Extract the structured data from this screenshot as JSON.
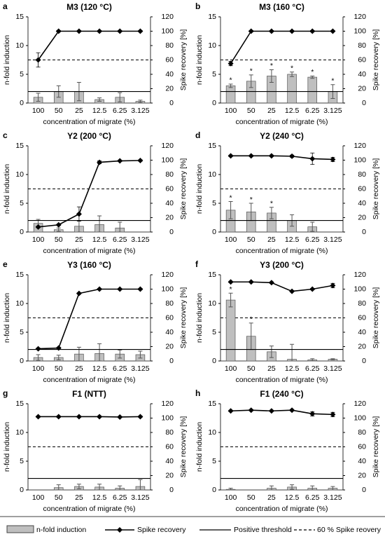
{
  "legend": [
    "n-fold induction",
    "Spike recovery",
    "Positive threshold",
    "60 % Spike reovery"
  ],
  "chart_data": [
    {
      "type": "bar_line",
      "panel": "a",
      "title": "M3 (120 °C)",
      "xlabel": "concentration of migrate (%)",
      "ylabel": "n-fold induction",
      "y2label": "Spike recovery [%]",
      "categories": [
        "100",
        "50",
        "25",
        "12.5",
        "6.25",
        "3.125"
      ],
      "ylim": [
        0,
        15
      ],
      "yticks": [
        0,
        5,
        10,
        15
      ],
      "y2lim": [
        0,
        120
      ],
      "y2ticks": [
        0,
        20,
        40,
        60,
        80,
        100,
        120
      ],
      "bars": {
        "color": "#bfbfbf",
        "values": [
          1.0,
          2.0,
          2.0,
          0.6,
          1.0,
          0.3
        ],
        "errors": [
          0.7,
          1.0,
          1.6,
          0.3,
          0.8,
          0.2
        ],
        "annotations": [
          null,
          null,
          null,
          null,
          null,
          null
        ]
      },
      "line": {
        "color": "#000000",
        "axis": "y2",
        "values": [
          60,
          100,
          100,
          100,
          100,
          100
        ],
        "errors": [
          10,
          1,
          1,
          1,
          1,
          1
        ]
      },
      "threshold": 2,
      "reference": 60
    },
    {
      "type": "bar_line",
      "panel": "b",
      "title": "M3 (160 °C)",
      "xlabel": "concentration of migrate (%)",
      "ylabel": "n-fold induction",
      "y2label": "Spike recovery [%]",
      "categories": [
        "100",
        "50",
        "25",
        "12.5",
        "6.25",
        "3.125"
      ],
      "ylim": [
        0,
        15
      ],
      "yticks": [
        0,
        5,
        10,
        15
      ],
      "y2lim": [
        0,
        120
      ],
      "y2ticks": [
        0,
        20,
        40,
        60,
        80,
        100,
        120
      ],
      "bars": {
        "color": "#bfbfbf",
        "values": [
          3.0,
          3.8,
          4.7,
          5.0,
          4.5,
          2.0
        ],
        "errors": [
          0.3,
          1.1,
          1.1,
          0.4,
          0.2,
          1.2
        ],
        "annotations": [
          "*",
          "*",
          "*",
          "*",
          "*",
          "*"
        ]
      },
      "line": {
        "color": "#000000",
        "axis": "y2",
        "values": [
          55,
          100,
          100,
          100,
          100,
          100
        ],
        "errors": [
          3,
          1,
          1,
          1,
          1,
          1
        ]
      },
      "threshold": 2,
      "reference": 60
    },
    {
      "type": "bar_line",
      "panel": "c",
      "title": "Y2 (200 °C)",
      "xlabel": "concentration of migrate (%)",
      "ylabel": "n-fold induction",
      "y2label": "Spike recovery [%]",
      "categories": [
        "100",
        "50",
        "25",
        "12.5",
        "6.25",
        "3.125"
      ],
      "ylim": [
        0,
        15
      ],
      "yticks": [
        0,
        5,
        10,
        15
      ],
      "y2lim": [
        0,
        120
      ],
      "y2ticks": [
        0,
        20,
        40,
        60,
        80,
        100,
        120
      ],
      "bars": {
        "color": "#bfbfbf",
        "values": [
          1.5,
          0.4,
          1.0,
          1.3,
          0.7,
          null
        ],
        "errors": [
          0.7,
          0.3,
          1.0,
          1.5,
          1.0,
          null
        ],
        "annotations": [
          null,
          null,
          null,
          null,
          null,
          null
        ]
      },
      "line": {
        "color": "#000000",
        "axis": "y2",
        "values": [
          7,
          10,
          25,
          97,
          99,
          99.5
        ],
        "errors": [
          1,
          1,
          10,
          2,
          1,
          1
        ]
      },
      "threshold": 2,
      "reference": 60
    },
    {
      "type": "bar_line",
      "panel": "d",
      "title": "Y2 (240 °C)",
      "xlabel": "concentration of migrate (%)",
      "ylabel": "n-fold induction",
      "y2label": "Spike recovery [%]",
      "categories": [
        "100",
        "50",
        "25",
        "12.5",
        "6.25",
        "3.125"
      ],
      "ylim": [
        0,
        15
      ],
      "yticks": [
        0,
        5,
        10,
        15
      ],
      "y2lim": [
        0,
        120
      ],
      "y2ticks": [
        0,
        20,
        40,
        60,
        80,
        100,
        120
      ],
      "bars": {
        "color": "#bfbfbf",
        "values": [
          3.8,
          3.5,
          3.3,
          2.0,
          0.9,
          null
        ],
        "errors": [
          1.5,
          1.5,
          1.0,
          1.0,
          0.8,
          null
        ],
        "annotations": [
          "*",
          "*",
          "*",
          null,
          null,
          null
        ]
      },
      "line": {
        "color": "#000000",
        "axis": "y2",
        "values": [
          106,
          106,
          106,
          105.5,
          102,
          101
        ],
        "errors": [
          1,
          1,
          1,
          1.5,
          8,
          3
        ]
      },
      "threshold": 2,
      "reference": 60
    },
    {
      "type": "bar_line",
      "panel": "e",
      "title": "Y3 (160 °C)",
      "xlabel": "concentration of migrate (%)",
      "ylabel": "n-fold induction",
      "y2label": "Spike recovery [%]",
      "categories": [
        "100",
        "50",
        "25",
        "12.5",
        "6.25",
        "3.125"
      ],
      "ylim": [
        0,
        15
      ],
      "yticks": [
        0,
        5,
        10,
        15
      ],
      "y2lim": [
        0,
        120
      ],
      "y2ticks": [
        0,
        20,
        40,
        60,
        80,
        100,
        120
      ],
      "bars": {
        "color": "#bfbfbf",
        "values": [
          0.6,
          0.6,
          1.2,
          1.3,
          1.2,
          1.1
        ],
        "errors": [
          0.5,
          0.4,
          1.2,
          1.7,
          0.7,
          0.6
        ],
        "annotations": [
          null,
          null,
          null,
          null,
          null,
          null
        ]
      },
      "line": {
        "color": "#000000",
        "axis": "y2",
        "values": [
          17,
          18,
          94,
          100,
          100,
          100
        ],
        "errors": [
          1,
          1,
          1,
          1,
          1,
          1
        ]
      },
      "threshold": 2,
      "reference": 60
    },
    {
      "type": "bar_line",
      "panel": "f",
      "title": "Y3 (200 °C)",
      "xlabel": "concentration of migrate (%)",
      "ylabel": "n-fold induction",
      "y2label": "Spike recovery [%]",
      "categories": [
        "100",
        "50",
        "25",
        "12.5",
        "6.25",
        "3.125"
      ],
      "ylim": [
        0,
        15
      ],
      "yticks": [
        0,
        5,
        10,
        15
      ],
      "y2lim": [
        0,
        120
      ],
      "y2ticks": [
        0,
        20,
        40,
        60,
        80,
        100,
        120
      ],
      "bars": {
        "color": "#bfbfbf",
        "values": [
          10.6,
          4.3,
          1.6,
          0.3,
          0.2,
          0.3
        ],
        "errors": [
          1.2,
          2.3,
          1.0,
          2.6,
          0.2,
          0.1
        ],
        "annotations": [
          "*",
          "*",
          null,
          null,
          null,
          null
        ]
      },
      "line": {
        "color": "#000000",
        "axis": "y2",
        "values": [
          110,
          110,
          109,
          97,
          100,
          105
        ],
        "errors": [
          1,
          1,
          1,
          1,
          1,
          3
        ]
      },
      "threshold": 2,
      "reference": 60
    },
    {
      "type": "bar_line",
      "panel": "g",
      "title": "F1 (NTT)",
      "xlabel": "concentration of migrate (%)",
      "ylabel": "n-fold induction",
      "y2label": "Spike recovery [%]",
      "categories": [
        "100",
        "50",
        "25",
        "12.5",
        "6.25",
        "3.125"
      ],
      "ylim": [
        0,
        15
      ],
      "yticks": [
        0,
        5,
        10,
        15
      ],
      "y2lim": [
        0,
        120
      ],
      "y2ticks": [
        0,
        20,
        40,
        60,
        80,
        100,
        120
      ],
      "bars": {
        "color": "#bfbfbf",
        "values": [
          null,
          0.4,
          0.6,
          0.5,
          0.3,
          0.6
        ],
        "errors": [
          null,
          0.5,
          0.4,
          0.5,
          0.4,
          1.2
        ],
        "annotations": [
          null,
          null,
          null,
          null,
          null,
          null
        ]
      },
      "line": {
        "color": "#000000",
        "axis": "y2",
        "values": [
          102,
          102,
          102,
          102,
          101.5,
          102
        ],
        "errors": [
          1,
          1,
          1,
          1,
          1,
          1
        ]
      },
      "threshold": 2,
      "reference": 60
    },
    {
      "type": "bar_line",
      "panel": "h",
      "title": "F1 (240 °C)",
      "xlabel": "concentration of migrate (%)",
      "ylabel": "n-fold induction",
      "y2label": "Spike recovery [%]",
      "categories": [
        "100",
        "50",
        "25",
        "12.5",
        "6.25",
        "3.125"
      ],
      "ylim": [
        0,
        15
      ],
      "yticks": [
        0,
        5,
        10,
        15
      ],
      "y2lim": [
        0,
        120
      ],
      "y2ticks": [
        0,
        20,
        40,
        60,
        80,
        100,
        120
      ],
      "bars": {
        "color": "#bfbfbf",
        "values": [
          0.1,
          null,
          0.3,
          0.5,
          0.3,
          0.3
        ],
        "errors": [
          0.2,
          null,
          0.4,
          0.4,
          0.4,
          0.3
        ],
        "annotations": [
          null,
          null,
          null,
          null,
          null,
          null
        ]
      },
      "line": {
        "color": "#000000",
        "axis": "y2",
        "values": [
          110,
          111,
          110,
          111,
          106,
          105
        ],
        "errors": [
          1,
          1,
          1,
          1,
          3,
          3
        ]
      },
      "threshold": 2,
      "reference": 60
    }
  ]
}
